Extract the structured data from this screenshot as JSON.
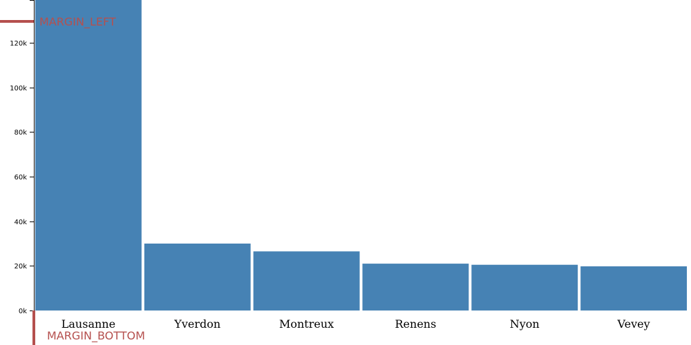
{
  "chart_data": {
    "type": "bar",
    "title": "",
    "xlabel": "",
    "ylabel": "",
    "categories": [
      "Lausanne",
      "Yverdon",
      "Montreux",
      "Renens",
      "Nyon",
      "Vevey"
    ],
    "values": [
      140000,
      30000,
      26500,
      21000,
      20500,
      19800
    ],
    "ylim": [
      0,
      140000
    ],
    "yticks": [
      0,
      20000,
      40000,
      60000,
      80000,
      100000,
      120000
    ],
    "ytick_labels": [
      "0k",
      "20k",
      "40k",
      "60k",
      "80k",
      "100k",
      "120k"
    ],
    "grid": false,
    "bar_color": "#4682b4"
  },
  "annotations": {
    "margin_left": "MARGIN_LEFT",
    "margin_bottom": "MARGIN_BOTTOM",
    "color": "#b5504e"
  }
}
